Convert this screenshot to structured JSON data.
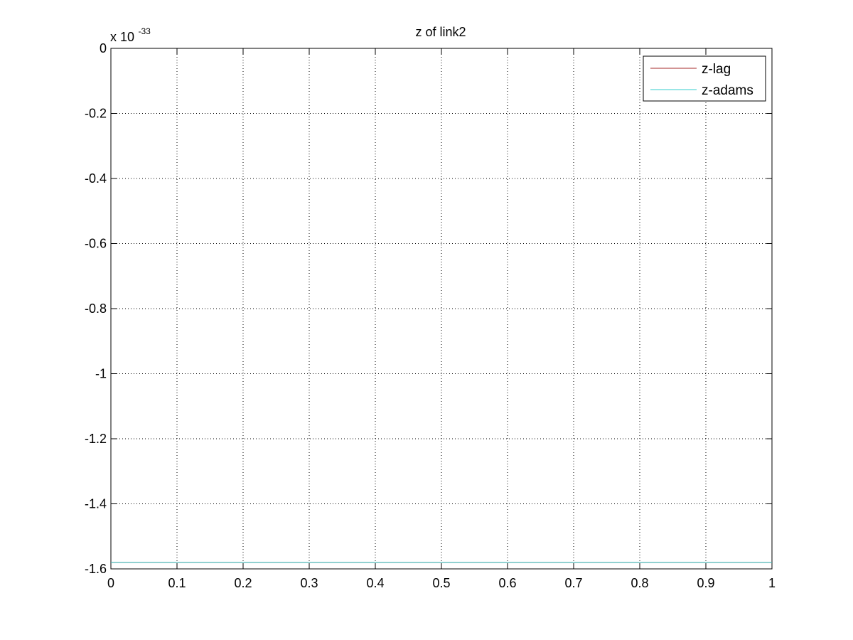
{
  "chart_data": {
    "type": "line",
    "title": "z of link2",
    "xlabel": "",
    "ylabel": "",
    "y_exponent_label": {
      "base": "x 10",
      "exponent": "-33"
    },
    "xlim": [
      0,
      1
    ],
    "ylim": [
      -1.6,
      0
    ],
    "xticks": [
      0,
      0.1,
      0.2,
      0.3,
      0.4,
      0.5,
      0.6,
      0.7,
      0.8,
      0.9,
      1
    ],
    "xtick_labels": [
      "0",
      "0.1",
      "0.2",
      "0.3",
      "0.4",
      "0.5",
      "0.6",
      "0.7",
      "0.8",
      "0.9",
      "1"
    ],
    "yticks": [
      0,
      -0.2,
      -0.4,
      -0.6,
      -0.8,
      -1,
      -1.2,
      -1.4,
      -1.6
    ],
    "ytick_labels": [
      "0",
      "-0.2",
      "-0.4",
      "-0.6",
      "-0.8",
      "-1",
      "-1.2",
      "-1.4",
      "-1.6"
    ],
    "grid": true,
    "legend_position": "top-right",
    "series": [
      {
        "name": "z-lag",
        "color": "#a52a2a",
        "x": [
          0,
          1
        ],
        "y": [
          -1.58,
          -1.58
        ]
      },
      {
        "name": "z-adams",
        "color": "#33cccc",
        "x": [
          0,
          1
        ],
        "y": [
          -1.58,
          -1.58
        ]
      }
    ]
  }
}
